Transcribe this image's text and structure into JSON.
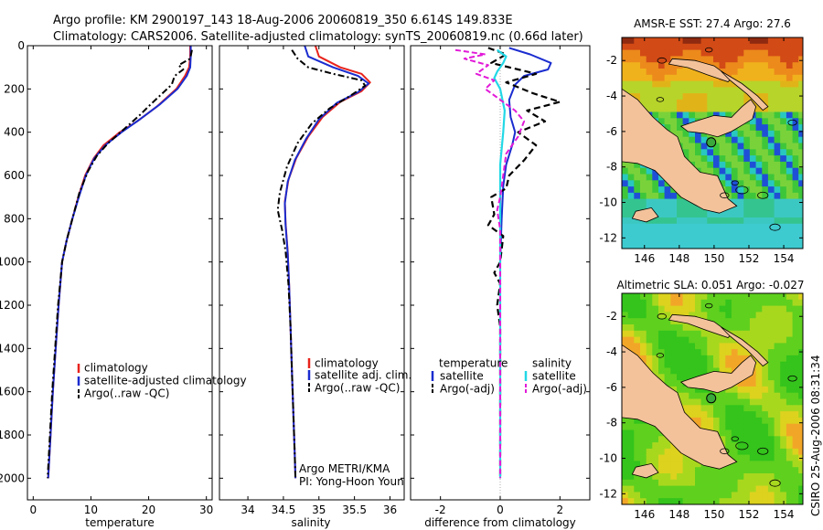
{
  "header": {
    "line1": "Argo profile: KM 2900197_143 18-Aug-2006 20060819_350 6.614S 149.833E",
    "line2": "Climatology: CARS2006. Satellite-adjusted climatology: synTS_20060819.nc (0.66d later)"
  },
  "credit": {
    "line1": "Argo METRI/KMA",
    "line2": "PI: Yong-Hoon Youn"
  },
  "side_label": "CSIRO 25-Aug-2006 08:31:34",
  "colors": {
    "climatology": "#e8231c",
    "satellite": "#1a2ccf",
    "argo": "#000000",
    "sal_satellite": "#22d8e6",
    "sal_argo": "#e21ad8",
    "land": "#f3c29a",
    "dot": "#3aa83a"
  },
  "chart_data": [
    {
      "type": "line",
      "title": "",
      "xlabel": "temperature",
      "ylabel": "",
      "xlim": [
        -1,
        31
      ],
      "ylim": [
        2100,
        0
      ],
      "xticks": [
        0,
        10,
        20,
        30
      ],
      "yticks": [
        0,
        200,
        400,
        600,
        800,
        1000,
        1200,
        1400,
        1600,
        1800,
        2000
      ],
      "legend": [
        "climatology",
        "satellite-adjusted climatology",
        "Argo(..raw -QC)"
      ],
      "series": [
        {
          "name": "climatology",
          "style": "red",
          "points": [
            [
              27.2,
              0
            ],
            [
              27.2,
              50
            ],
            [
              27.0,
              100
            ],
            [
              26.3,
              140
            ],
            [
              24.8,
              200
            ],
            [
              21.5,
              280
            ],
            [
              18.0,
              350
            ],
            [
              15.0,
              400
            ],
            [
              12.2,
              460
            ],
            [
              10.5,
              520
            ],
            [
              9.0,
              600
            ],
            [
              7.8,
              700
            ],
            [
              6.8,
              800
            ],
            [
              5.8,
              900
            ],
            [
              5.0,
              1000
            ],
            [
              4.4,
              1200
            ],
            [
              3.9,
              1400
            ],
            [
              3.4,
              1600
            ],
            [
              3.0,
              1800
            ],
            [
              2.6,
              2000
            ]
          ]
        },
        {
          "name": "satellite-adjusted climatology",
          "style": "blue",
          "points": [
            [
              27.3,
              0
            ],
            [
              27.3,
              50
            ],
            [
              27.2,
              100
            ],
            [
              26.6,
              140
            ],
            [
              25.0,
              200
            ],
            [
              22.0,
              270
            ],
            [
              18.5,
              340
            ],
            [
              15.3,
              400
            ],
            [
              12.5,
              460
            ],
            [
              10.6,
              520
            ],
            [
              9.1,
              600
            ],
            [
              7.9,
              700
            ],
            [
              6.8,
              800
            ],
            [
              5.8,
              900
            ],
            [
              5.0,
              1000
            ],
            [
              4.4,
              1200
            ],
            [
              3.9,
              1400
            ],
            [
              3.4,
              1600
            ],
            [
              3.0,
              1800
            ],
            [
              2.6,
              2000
            ]
          ]
        },
        {
          "name": "Argo(..raw -QC)",
          "style": "dashdot",
          "points": [
            [
              27.5,
              20
            ],
            [
              27.2,
              60
            ],
            [
              25.2,
              90
            ],
            [
              26.0,
              110
            ],
            [
              24.5,
              140
            ],
            [
              24.0,
              180
            ],
            [
              22.0,
              230
            ],
            [
              20.0,
              280
            ],
            [
              18.5,
              320
            ],
            [
              16.0,
              380
            ],
            [
              13.0,
              450
            ],
            [
              11.0,
              510
            ],
            [
              9.5,
              580
            ],
            [
              8.0,
              680
            ],
            [
              6.8,
              800
            ],
            [
              5.8,
              900
            ],
            [
              5.0,
              1000
            ],
            [
              4.3,
              1200
            ],
            [
              3.8,
              1400
            ],
            [
              3.3,
              1600
            ],
            [
              2.9,
              1800
            ],
            [
              2.5,
              2000
            ]
          ]
        }
      ]
    },
    {
      "type": "line",
      "title": "",
      "xlabel": "salinity",
      "ylabel": "",
      "xlim": [
        33.6,
        36.2
      ],
      "ylim": [
        2100,
        0
      ],
      "xticks": [
        34,
        34.5,
        35,
        35.5,
        36
      ],
      "legend": [
        "climatology",
        "satellite adj. clim.",
        "Argo(..raw -QC)"
      ],
      "series": [
        {
          "name": "climatology",
          "style": "red",
          "points": [
            [
              34.95,
              0
            ],
            [
              35.0,
              50
            ],
            [
              35.3,
              100
            ],
            [
              35.6,
              130
            ],
            [
              35.72,
              170
            ],
            [
              35.6,
              210
            ],
            [
              35.3,
              260
            ],
            [
              35.05,
              330
            ],
            [
              34.85,
              420
            ],
            [
              34.68,
              520
            ],
            [
              34.57,
              620
            ],
            [
              34.52,
              720
            ],
            [
              34.53,
              820
            ],
            [
              34.56,
              950
            ],
            [
              34.58,
              1100
            ],
            [
              34.6,
              1300
            ],
            [
              34.62,
              1500
            ],
            [
              34.64,
              1700
            ],
            [
              34.66,
              1900
            ],
            [
              34.67,
              2000
            ]
          ]
        },
        {
          "name": "satellite adj. clim.",
          "style": "blue",
          "points": [
            [
              34.8,
              0
            ],
            [
              34.85,
              50
            ],
            [
              35.2,
              100
            ],
            [
              35.55,
              140
            ],
            [
              35.7,
              175
            ],
            [
              35.55,
              215
            ],
            [
              35.25,
              265
            ],
            [
              35.0,
              340
            ],
            [
              34.82,
              430
            ],
            [
              34.66,
              530
            ],
            [
              34.56,
              630
            ],
            [
              34.52,
              730
            ],
            [
              34.53,
              830
            ],
            [
              34.56,
              960
            ],
            [
              34.58,
              1100
            ],
            [
              34.6,
              1300
            ],
            [
              34.62,
              1500
            ],
            [
              34.64,
              1700
            ],
            [
              34.66,
              1900
            ],
            [
              34.67,
              2000
            ]
          ]
        },
        {
          "name": "Argo(..raw -QC)",
          "style": "dashdot",
          "points": [
            [
              34.62,
              20
            ],
            [
              34.7,
              60
            ],
            [
              34.85,
              100
            ],
            [
              35.2,
              130
            ],
            [
              35.6,
              160
            ],
            [
              35.65,
              185
            ],
            [
              35.45,
              230
            ],
            [
              35.15,
              290
            ],
            [
              34.9,
              360
            ],
            [
              34.7,
              450
            ],
            [
              34.55,
              560
            ],
            [
              34.45,
              680
            ],
            [
              34.42,
              760
            ],
            [
              34.48,
              850
            ],
            [
              34.53,
              950
            ],
            [
              34.57,
              1100
            ],
            [
              34.6,
              1300
            ],
            [
              34.62,
              1500
            ],
            [
              34.64,
              1700
            ],
            [
              34.66,
              1900
            ],
            [
              34.67,
              2000
            ]
          ]
        }
      ]
    },
    {
      "type": "line",
      "title": "",
      "xlabel": "difference from climatology",
      "ylabel": "",
      "xlim": [
        -3,
        3
      ],
      "ylim": [
        2100,
        0
      ],
      "xticks": [
        -2,
        0,
        2
      ],
      "legend": [
        "temperature",
        "satellite",
        "Argo(-adj)",
        "salinity",
        "satellite",
        "Argo(-adj)"
      ],
      "series": [
        {
          "name": "temperature satellite",
          "style": "blue",
          "points": [
            [
              0.3,
              10
            ],
            [
              1.0,
              40
            ],
            [
              1.7,
              80
            ],
            [
              1.6,
              110
            ],
            [
              0.8,
              140
            ],
            [
              0.5,
              180
            ],
            [
              0.3,
              250
            ],
            [
              0.35,
              330
            ],
            [
              0.5,
              400
            ],
            [
              0.4,
              460
            ],
            [
              0.2,
              550
            ],
            [
              0.1,
              650
            ],
            [
              0.05,
              800
            ],
            [
              0.0,
              1000
            ],
            [
              0.0,
              1500
            ],
            [
              0.0,
              2000
            ]
          ]
        },
        {
          "name": "temperature Argo(-adj)",
          "style": "dashed",
          "points": [
            [
              -0.4,
              10
            ],
            [
              0.2,
              40
            ],
            [
              -0.3,
              80
            ],
            [
              0.6,
              110
            ],
            [
              1.2,
              130
            ],
            [
              0.2,
              170
            ],
            [
              1.1,
              220
            ],
            [
              2.0,
              260
            ],
            [
              0.9,
              300
            ],
            [
              1.5,
              350
            ],
            [
              0.6,
              400
            ],
            [
              1.2,
              460
            ],
            [
              0.8,
              530
            ],
            [
              0.3,
              600
            ],
            [
              0.2,
              660
            ],
            [
              -0.3,
              700
            ],
            [
              -0.2,
              780
            ],
            [
              -0.4,
              830
            ],
            [
              0.1,
              880
            ],
            [
              0.0,
              1000
            ],
            [
              -0.2,
              1050
            ],
            [
              0.0,
              1100
            ],
            [
              -0.1,
              1200
            ],
            [
              0.0,
              1300
            ],
            [
              0.0,
              1500
            ],
            [
              0.0,
              2000
            ]
          ]
        },
        {
          "name": "salinity satellite",
          "style": "cyan",
          "points": [
            [
              -0.1,
              20
            ],
            [
              0.2,
              50
            ],
            [
              0.1,
              80
            ],
            [
              -0.1,
              120
            ],
            [
              -0.2,
              150
            ],
            [
              0.0,
              200
            ],
            [
              0.15,
              300
            ],
            [
              0.1,
              400
            ],
            [
              0.0,
              550
            ],
            [
              0.0,
              800
            ],
            [
              0.0,
              1200
            ],
            [
              0.0,
              2000
            ]
          ]
        },
        {
          "name": "salinity Argo(-adj)",
          "style": "magenta-dashed",
          "points": [
            [
              -1.5,
              20
            ],
            [
              -0.5,
              40
            ],
            [
              -1.2,
              60
            ],
            [
              -0.4,
              90
            ],
            [
              -0.8,
              130
            ],
            [
              -0.2,
              160
            ],
            [
              -0.5,
              200
            ],
            [
              0.0,
              250
            ],
            [
              0.5,
              300
            ],
            [
              0.8,
              350
            ],
            [
              0.6,
              420
            ],
            [
              0.2,
              500
            ],
            [
              0.1,
              600
            ],
            [
              0.0,
              700
            ],
            [
              -0.1,
              760
            ],
            [
              0.0,
              850
            ],
            [
              0.0,
              1000
            ],
            [
              0.0,
              2000
            ]
          ]
        }
      ]
    },
    {
      "type": "heatmap",
      "title": "AMSR-E SST: 27.4 Argo: 27.6",
      "xlabel": "",
      "ylabel": "",
      "xlim": [
        144.7,
        155.1
      ],
      "ylim": [
        -12.6,
        -0.7
      ],
      "xticks": [
        146,
        148,
        150,
        152,
        154
      ],
      "yticks": [
        -2,
        -4,
        -6,
        -8,
        -10,
        -12
      ],
      "argo_position": [
        149.833,
        -6.614
      ]
    },
    {
      "type": "heatmap",
      "title": "Altimetric SLA: 0.051 Argo: -0.027",
      "xlabel": "",
      "ylabel": "",
      "xlim": [
        144.7,
        155.1
      ],
      "ylim": [
        -12.6,
        -0.7
      ],
      "xticks": [
        146,
        148,
        150,
        152,
        154
      ],
      "yticks": [
        -2,
        -4,
        -6,
        -8,
        -10,
        -12
      ],
      "argo_position": [
        149.833,
        -6.614
      ]
    }
  ]
}
